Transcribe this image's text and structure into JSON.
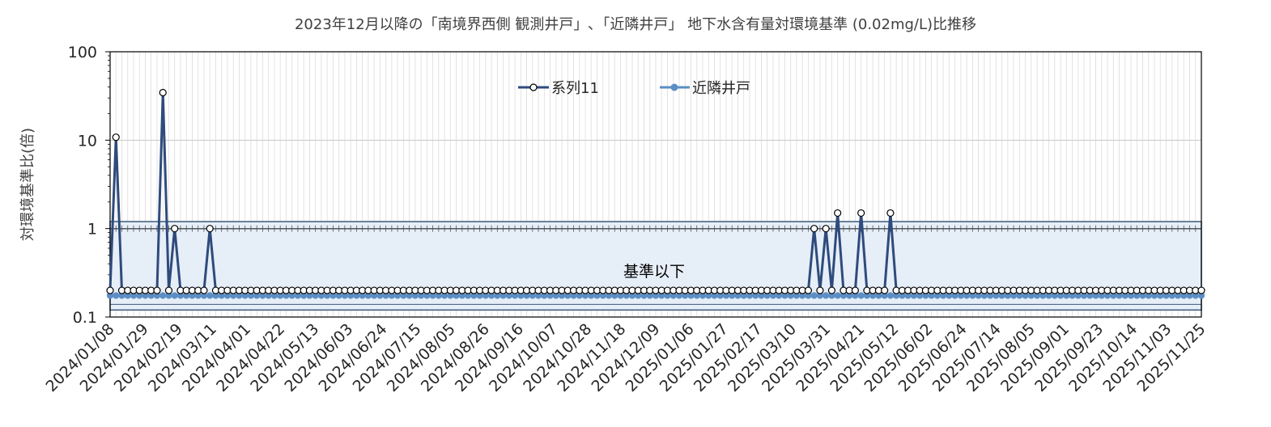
{
  "chart_data": {
    "type": "line",
    "title": "2023年12月以降の「南境界西側 観測井戸」､「近隣井戸」 地下水含有量対環境基準 (0.02mg/L)比推移",
    "ylabel": "対環境基準比(倍)",
    "xlabel": "",
    "yscale": "log",
    "ylim": [
      0.1,
      100
    ],
    "ytick_labels": [
      "0.1",
      "1",
      "10",
      "100"
    ],
    "ytick_values": [
      0.1,
      1,
      10,
      100
    ],
    "x_start": "2024/01/08",
    "x_end": "2025/11/25",
    "xtick_labels": [
      "2024/01/08",
      "2024/01/29",
      "2024/02/19",
      "2024/03/11",
      "2024/04/01",
      "2024/04/22",
      "2024/05/13",
      "2024/06/03",
      "2024/06/24",
      "2024/07/15",
      "2024/08/05",
      "2024/08/26",
      "2024/09/16",
      "2024/10/07",
      "2024/10/28",
      "2024/11/18",
      "2024/12/09",
      "2025/01/06",
      "2025/01/27",
      "2025/02/17",
      "2025/03/10",
      "2025/03/31",
      "2025/04/21",
      "2025/05/12",
      "2025/06/02",
      "2025/06/24",
      "2025/07/14",
      "2025/08/05",
      "2025/09/01",
      "2025/09/23",
      "2025/10/14",
      "2025/11/03",
      "2025/11/25"
    ],
    "grid": true,
    "legend_position": "top-center",
    "band": {
      "label": "基準以下",
      "ymin": 0.12,
      "ymax": 1.2,
      "fill": "#e6eef8",
      "stroke": "#3c5a7a"
    },
    "series": [
      {
        "name": "系列11",
        "color": "#2f4b7c",
        "marker": "open-circle",
        "values": [
          0.2,
          10.8,
          0.2,
          0.2,
          0.2,
          0.2,
          0.2,
          0.2,
          0.2,
          34.5,
          0.2,
          1.0,
          0.2,
          0.2,
          0.2,
          0.2,
          0.2,
          1.0,
          0.2,
          0.2,
          0.2,
          0.2,
          0.2,
          0.2,
          0.2,
          0.2,
          0.2,
          0.2,
          0.2,
          0.2,
          0.2,
          0.2,
          0.2,
          0.2,
          0.2,
          0.2,
          0.2,
          0.2,
          0.2,
          0.2,
          0.2,
          0.2,
          0.2,
          0.2,
          0.2,
          0.2,
          0.2,
          0.2,
          0.2,
          0.2,
          0.2,
          0.2,
          0.2,
          0.2,
          0.2,
          0.2,
          0.2,
          0.2,
          0.2,
          0.2,
          0.2,
          0.2,
          0.2,
          0.2,
          0.2,
          0.2,
          0.2,
          0.2,
          0.2,
          0.2,
          0.2,
          0.2,
          0.2,
          0.2,
          0.2,
          0.2,
          0.2,
          0.2,
          0.2,
          0.2,
          0.2,
          0.2,
          0.2,
          0.2,
          0.2,
          0.2,
          0.2,
          0.2,
          0.2,
          0.2,
          0.2,
          0.2,
          0.2,
          0.2,
          0.2,
          0.2,
          0.2,
          0.2,
          0.2,
          0.2,
          0.2,
          0.2,
          0.2,
          0.2,
          0.2,
          0.2,
          0.2,
          0.2,
          0.2,
          0.2,
          0.2,
          0.2,
          0.2,
          0.2,
          0.2,
          0.2,
          0.2,
          0.2,
          0.2,
          0.2,
          1.0,
          0.2,
          1.0,
          0.2,
          1.5,
          0.2,
          0.2,
          0.2,
          1.5,
          0.2,
          0.2,
          0.2,
          0.2,
          1.5,
          0.2,
          0.2,
          0.2,
          0.2,
          0.2,
          0.2,
          0.2,
          0.2,
          0.2,
          0.2,
          0.2,
          0.2,
          0.2,
          0.2,
          0.2,
          0.2,
          0.2,
          0.2,
          0.2,
          0.2,
          0.2,
          0.2,
          0.2,
          0.2,
          0.2,
          0.2,
          0.2,
          0.2,
          0.2,
          0.2,
          0.2,
          0.2,
          0.2,
          0.2,
          0.2,
          0.2,
          0.2,
          0.2,
          0.2,
          0.2,
          0.2,
          0.2,
          0.2,
          0.2,
          0.2,
          0.2,
          0.2,
          0.2,
          0.2,
          0.2,
          0.2,
          0.2,
          0.2
        ]
      },
      {
        "name": "近隣井戸",
        "color": "#5b8ec4",
        "marker": "filled-circle",
        "values": [
          0.175
        ]
      }
    ]
  }
}
